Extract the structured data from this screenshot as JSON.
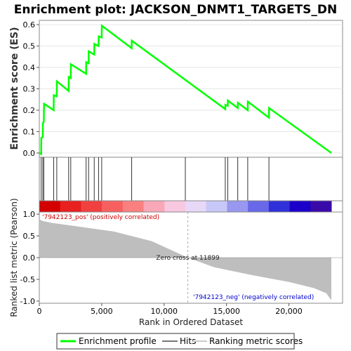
{
  "chart_data": {
    "type": "line",
    "title": "Enrichment plot: JACKSON_DNMT1_TARGETS_DN",
    "es_panel": {
      "ylabel": "Enrichment score (ES)",
      "ylim": [
        -0.02,
        0.62
      ],
      "yticks": [
        "0.0",
        "0.1",
        "0.2",
        "0.3",
        "0.4",
        "0.5",
        "0.6"
      ],
      "ytick_values": [
        0.0,
        0.1,
        0.2,
        0.3,
        0.4,
        0.5,
        0.6
      ],
      "line_color": "#00ff00",
      "series": [
        {
          "name": "Enrichment profile",
          "x": [
            0,
            150,
            160,
            280,
            290,
            360,
            380,
            1150,
            1160,
            1400,
            1410,
            2350,
            2360,
            2520,
            2530,
            3750,
            3760,
            3950,
            3960,
            4400,
            4410,
            4750,
            4760,
            5000,
            5010,
            7400,
            7410,
            14900,
            14910,
            15100,
            15110,
            15900,
            15910,
            16700,
            16710,
            18400,
            18410,
            23400
          ],
          "y": [
            0.0,
            -0.005,
            0.07,
            0.075,
            0.14,
            0.145,
            0.23,
            0.2,
            0.27,
            0.265,
            0.335,
            0.29,
            0.355,
            0.35,
            0.415,
            0.37,
            0.425,
            0.42,
            0.475,
            0.46,
            0.51,
            0.5,
            0.545,
            0.54,
            0.595,
            0.49,
            0.525,
            0.205,
            0.225,
            0.22,
            0.245,
            0.21,
            0.235,
            0.2,
            0.24,
            0.165,
            0.21,
            0.0
          ]
        }
      ]
    },
    "hits": {
      "legend": "Hits",
      "x": [
        150,
        280,
        360,
        1150,
        1400,
        2350,
        2520,
        3750,
        3950,
        4400,
        4750,
        5000,
        7400,
        11700,
        14900,
        15100,
        15900,
        16700,
        18400
      ]
    },
    "ranking_panel": {
      "ylabel": "Ranked list metric (Pearson)",
      "xlabel": "Rank in Ordered Dataset",
      "xlim": [
        0,
        24300
      ],
      "xticks": [
        "0",
        "5,000",
        "10,000",
        "15,000",
        "20,000"
      ],
      "xtick_values": [
        0,
        5000,
        10000,
        15000,
        20000
      ],
      "ylim": [
        -1.05,
        1.05
      ],
      "yticks": [
        "1.0",
        "0.5",
        "0.0",
        "-0.5",
        "-1.0"
      ],
      "ytick_values": [
        1.0,
        0.5,
        0.0,
        -0.5,
        -1.0
      ],
      "fill_color": "#bebebe",
      "legend": "Ranking metric scores",
      "metric": {
        "x": [
          0,
          300,
          1000,
          3000,
          6000,
          9000,
          11899,
          14000,
          17000,
          20000,
          22000,
          23000,
          23400
        ],
        "y": [
          0.88,
          0.84,
          0.8,
          0.72,
          0.6,
          0.38,
          0.0,
          -0.22,
          -0.4,
          -0.56,
          -0.7,
          -0.82,
          -0.98
        ]
      },
      "zero_cross": 11899,
      "zero_cross_label": "Zero cross at 11899",
      "pos_label": "'7942123_pos' (positively correlated)",
      "neg_label": "'7942123_neg' (negatively correlated)",
      "pos_color": "#cc0000",
      "neg_color": "#0000cc"
    },
    "color_bar": [
      "#d40000",
      "#e82020",
      "#f04040",
      "#f86060",
      "#fa8080",
      "#f8a8b8",
      "#f8c8e0",
      "#e8d8f8",
      "#c8c8f8",
      "#9898f0",
      "#6868e8",
      "#3030d8",
      "#1a00c8",
      "#3a0aa8"
    ],
    "legend_items": [
      "Enrichment profile",
      "Hits",
      "Ranking metric scores"
    ]
  }
}
